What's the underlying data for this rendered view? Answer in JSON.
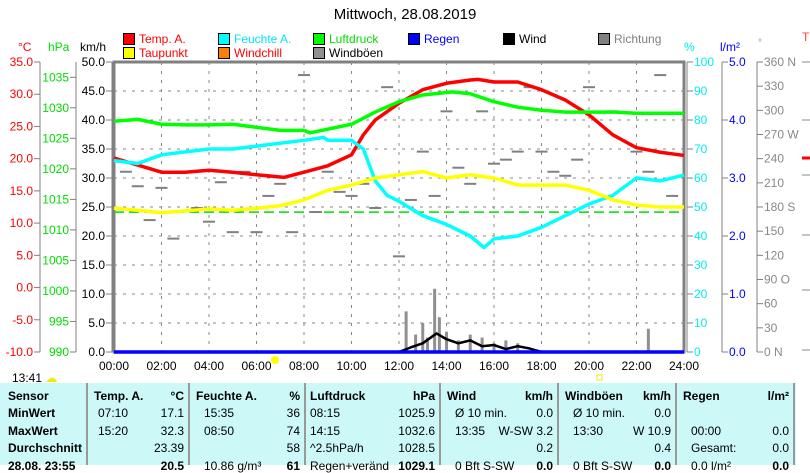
{
  "title": "Mittwoch, 28.08.2019",
  "legend": [
    {
      "label": "Temp. A.",
      "color": "#ff0000",
      "text_color": "#ff0000"
    },
    {
      "label": "Feuchte A.",
      "color": "#00ffff",
      "text_color": "#00e5ff"
    },
    {
      "label": "Luftdruck",
      "color": "#00ff00",
      "text_color": "#00dd00"
    },
    {
      "label": "Regen",
      "color": "#0000ff",
      "text_color": "#0000ff"
    },
    {
      "label": "Wind",
      "color": "#000000",
      "text_color": "#000000"
    },
    {
      "label": "Richtung",
      "color": "#808080",
      "text_color": "#808080"
    },
    {
      "label": "Taupunkt",
      "color": "#ffff00",
      "text_color": "#ff0000"
    },
    {
      "label": "Windchill",
      "color": "#ff8000",
      "text_color": "#ff0000"
    },
    {
      "label": "Windböen",
      "color": "#909090",
      "text_color": "#000000"
    }
  ],
  "units": {
    "temp": "°C",
    "pressure": "hPa",
    "wind": "km/h",
    "humidity": "%",
    "rain": "l/m²",
    "direction": "°",
    "right_partial": "T"
  },
  "current_time": "13:41",
  "chart_data": {
    "type": "line",
    "title": "Mittwoch, 28.08.2019",
    "x_range": [
      0,
      24
    ],
    "x_ticks": [
      "00:00",
      "02:00",
      "04:00",
      "06:00",
      "08:00",
      "10:00",
      "12:00",
      "14:00",
      "16:00",
      "18:00",
      "20:00",
      "22:00",
      "24:00"
    ],
    "axes": {
      "temp": {
        "range": [
          -10,
          35
        ],
        "ticks": [
          "35.0",
          "30.0",
          "25.0",
          "20.0",
          "15.0",
          "10.0",
          "5.0",
          "0.0",
          "-5.0",
          "-10.0"
        ]
      },
      "pressure": {
        "range": [
          990,
          1037.5
        ],
        "ticks": [
          "1035",
          "1030",
          "1025",
          "1020",
          "1015",
          "1010",
          "1005",
          "1000",
          "995",
          "990"
        ]
      },
      "wind": {
        "range": [
          0,
          50
        ],
        "ticks": [
          "50.0",
          "45.0",
          "40.0",
          "35.0",
          "30.0",
          "25.0",
          "20.0",
          "15.0",
          "10.0",
          "5.0",
          "0.0"
        ]
      },
      "humidity": {
        "range": [
          0,
          100
        ],
        "ticks": [
          "100",
          "90",
          "80",
          "70",
          "60",
          "50",
          "40",
          "30",
          "20",
          "10",
          "0"
        ]
      },
      "rain": {
        "range": [
          0,
          5
        ],
        "ticks": [
          "5.0",
          "4.0",
          "3.0",
          "2.0",
          "1.0",
          "0.0"
        ]
      },
      "direction": {
        "range": [
          0,
          360
        ],
        "ticks": [
          "360 N",
          "330",
          "300",
          "270 W",
          "240",
          "210",
          "180 S",
          "150",
          "120",
          "90  O",
          "60",
          "30",
          "0    N"
        ]
      }
    },
    "series": [
      {
        "name": "Temp. A.",
        "axis": "temp",
        "color": "#ff0000",
        "points": [
          [
            0,
            20.1
          ],
          [
            1,
            19.0
          ],
          [
            2,
            17.9
          ],
          [
            3,
            17.9
          ],
          [
            4,
            18.2
          ],
          [
            5,
            17.9
          ],
          [
            6,
            17.5
          ],
          [
            7.17,
            17.1
          ],
          [
            8,
            17.9
          ],
          [
            9,
            18.9
          ],
          [
            10,
            20.6
          ],
          [
            10.5,
            23.7
          ],
          [
            11,
            26.0
          ],
          [
            12,
            28.6
          ],
          [
            13,
            30.7
          ],
          [
            14,
            31.7
          ],
          [
            15,
            32.2
          ],
          [
            15.33,
            32.3
          ],
          [
            16,
            31.9
          ],
          [
            17,
            31.9
          ],
          [
            18,
            30.7
          ],
          [
            19,
            29.1
          ],
          [
            20,
            26.8
          ],
          [
            21,
            23.7
          ],
          [
            22,
            21.7
          ],
          [
            23,
            21.0
          ],
          [
            24,
            20.5
          ]
        ]
      },
      {
        "name": "Feuchte A.",
        "axis": "humidity",
        "color": "#00ffff",
        "points": [
          [
            0,
            66
          ],
          [
            1,
            65
          ],
          [
            2,
            68
          ],
          [
            3,
            69
          ],
          [
            4,
            70
          ],
          [
            5,
            70
          ],
          [
            6,
            71
          ],
          [
            7,
            72
          ],
          [
            8,
            73
          ],
          [
            8.83,
            74
          ],
          [
            9,
            73
          ],
          [
            10,
            73
          ],
          [
            10.5,
            70
          ],
          [
            11,
            59
          ],
          [
            11.5,
            54
          ],
          [
            12,
            52
          ],
          [
            13,
            47
          ],
          [
            14,
            44
          ],
          [
            15,
            40
          ],
          [
            15.58,
            36
          ],
          [
            16,
            39
          ],
          [
            17,
            40
          ],
          [
            18,
            43
          ],
          [
            19,
            47
          ],
          [
            20,
            51
          ],
          [
            21,
            54
          ],
          [
            22,
            60
          ],
          [
            23,
            59
          ],
          [
            24,
            61
          ]
        ]
      },
      {
        "name": "Luftdruck",
        "axis": "pressure",
        "color": "#00ff00",
        "points": [
          [
            0,
            1027.8
          ],
          [
            1,
            1028.1
          ],
          [
            2,
            1027.3
          ],
          [
            3,
            1027.2
          ],
          [
            4,
            1027.2
          ],
          [
            5,
            1027.3
          ],
          [
            6,
            1026.8
          ],
          [
            7,
            1026.3
          ],
          [
            8,
            1026.3
          ],
          [
            8.25,
            1025.9
          ],
          [
            9,
            1026.5
          ],
          [
            10,
            1027.3
          ],
          [
            11,
            1029.3
          ],
          [
            12,
            1031.0
          ],
          [
            13,
            1032.1
          ],
          [
            14.25,
            1032.6
          ],
          [
            15,
            1032.3
          ],
          [
            16,
            1031.0
          ],
          [
            17,
            1030.1
          ],
          [
            18,
            1029.6
          ],
          [
            19,
            1029.3
          ],
          [
            20,
            1029.3
          ],
          [
            21,
            1029.3
          ],
          [
            22,
            1029.1
          ],
          [
            24,
            1029.1
          ]
        ]
      },
      {
        "name": "Taupunkt",
        "axis": "temp",
        "color": "#ffff00",
        "points": [
          [
            0,
            12.3
          ],
          [
            1,
            12.0
          ],
          [
            2,
            11.6
          ],
          [
            3,
            11.9
          ],
          [
            4,
            12.2
          ],
          [
            5,
            12.0
          ],
          [
            6,
            12.3
          ],
          [
            7,
            12.7
          ],
          [
            8,
            13.6
          ],
          [
            9,
            15.1
          ],
          [
            10,
            15.9
          ],
          [
            11,
            17.0
          ],
          [
            12,
            17.5
          ],
          [
            13,
            18.0
          ],
          [
            14,
            17.0
          ],
          [
            15,
            17.5
          ],
          [
            16,
            17.0
          ],
          [
            17,
            15.9
          ],
          [
            18,
            15.9
          ],
          [
            19,
            15.9
          ],
          [
            20,
            15.1
          ],
          [
            21,
            13.6
          ],
          [
            22,
            12.8
          ],
          [
            23,
            12.5
          ],
          [
            24,
            12.5
          ]
        ]
      },
      {
        "name": "Wind",
        "axis": "wind",
        "color": "#000000",
        "points": [
          [
            12,
            0
          ],
          [
            12.5,
            0.8
          ],
          [
            13,
            1.5
          ],
          [
            13.58,
            3.2
          ],
          [
            14,
            2.2
          ],
          [
            14.5,
            1.5
          ],
          [
            15,
            2.0
          ],
          [
            15.5,
            1.0
          ],
          [
            16,
            1.2
          ],
          [
            16.5,
            0.5
          ],
          [
            17,
            1.0
          ],
          [
            17.5,
            0.6
          ],
          [
            18,
            0
          ],
          [
            24,
            0
          ]
        ]
      },
      {
        "name": "Regen",
        "axis": "rain",
        "color": "#0000ff",
        "points": [
          [
            0,
            0
          ],
          [
            24,
            0
          ]
        ]
      }
    ],
    "gusts": {
      "name": "Windböen",
      "axis": "wind",
      "color": "#909090",
      "bars": [
        [
          12.3,
          7.0
        ],
        [
          12.7,
          3.0
        ],
        [
          13.0,
          5.0
        ],
        [
          13.2,
          2.5
        ],
        [
          13.5,
          10.9
        ],
        [
          13.7,
          6.0
        ],
        [
          14.0,
          3.5
        ],
        [
          14.5,
          2.0
        ],
        [
          15.0,
          3.0
        ],
        [
          15.5,
          2.5
        ],
        [
          16.0,
          1.5
        ],
        [
          16.5,
          2.0
        ],
        [
          17.0,
          1.5
        ],
        [
          22.5,
          4.0
        ]
      ]
    },
    "direction": {
      "name": "Richtung",
      "axis": "direction",
      "color": "#808080",
      "points": [
        [
          0.5,
          225
        ],
        [
          1,
          207
        ],
        [
          1.5,
          165
        ],
        [
          2,
          205
        ],
        [
          2.5,
          142
        ],
        [
          3,
          250
        ],
        [
          3.5,
          180
        ],
        [
          4,
          163
        ],
        [
          4.5,
          212
        ],
        [
          5,
          150
        ],
        [
          5.5,
          225
        ],
        [
          6,
          150
        ],
        [
          6.5,
          195
        ],
        [
          7,
          210
        ],
        [
          7.5,
          150
        ],
        [
          8,
          345
        ],
        [
          8.5,
          175
        ],
        [
          9,
          225
        ],
        [
          9.5,
          200
        ],
        [
          10,
          195
        ],
        [
          10.5,
          210
        ],
        [
          11,
          180
        ],
        [
          11.5,
          330
        ],
        [
          12,
          120
        ],
        [
          12.5,
          190
        ],
        [
          13,
          250
        ],
        [
          13.5,
          195
        ],
        [
          14,
          300
        ],
        [
          14.5,
          230
        ],
        [
          15,
          210
        ],
        [
          15.5,
          300
        ],
        [
          16,
          235
        ],
        [
          16.5,
          240
        ],
        [
          17,
          250
        ],
        [
          17.5,
          330
        ],
        [
          18,
          250
        ],
        [
          18.5,
          225
        ],
        [
          19,
          220
        ],
        [
          19.5,
          240
        ],
        [
          20,
          330
        ],
        [
          21,
          300
        ],
        [
          22,
          250
        ],
        [
          22.5,
          225
        ],
        [
          23,
          345
        ],
        [
          23.5,
          195
        ]
      ]
    },
    "reference_line": {
      "axis": "temp",
      "value": 11.7,
      "color": "#00dd00"
    }
  },
  "table": {
    "headers": [
      [
        "Sensor",
        ""
      ],
      [
        "Temp. A.",
        "°C"
      ],
      [
        "Feuchte A.",
        "%"
      ],
      [
        "Luftdruck",
        "hPa"
      ],
      [
        "Wind",
        "km/h"
      ],
      [
        "Windböen",
        "km/h"
      ],
      [
        "Regen",
        "l/m²"
      ]
    ],
    "rows": [
      {
        "label": "MinWert",
        "cells": [
          [
            "07:10",
            "17.1"
          ],
          [
            "15:35",
            "36"
          ],
          [
            "08:15",
            "1025.9"
          ],
          [
            "Ø 10 min.",
            "0.0"
          ],
          [
            "Ø 10 min.",
            "0.0"
          ],
          [
            "",
            ""
          ]
        ]
      },
      {
        "label": "MaxWert",
        "cells": [
          [
            "15:20",
            "32.3"
          ],
          [
            "08:50",
            "74"
          ],
          [
            "14:15",
            "1032.6"
          ],
          [
            "13:35",
            "W-SW 3.2"
          ],
          [
            "13:30",
            "W 10.9"
          ],
          [
            "00:00",
            "0.0"
          ]
        ]
      },
      {
        "label": "Durchschnitt",
        "cells": [
          [
            "",
            "23.39"
          ],
          [
            "",
            "58"
          ],
          [
            "^2.5hPa/h",
            "1028.5"
          ],
          [
            "",
            "0.2"
          ],
          [
            "",
            "0.4"
          ],
          [
            "Gesamt:",
            "0.0"
          ]
        ]
      },
      {
        "label": "28.08. 23:55",
        "cells": [
          [
            "",
            "20.5"
          ],
          [
            "10.86 g/m³",
            "61"
          ],
          [
            "Regen+veränd",
            "1029.1"
          ],
          [
            "0 Bft S-SW",
            "0.0"
          ],
          [
            "0 Bft S-SW",
            "0.0"
          ],
          [
            "0.0 l/m²",
            "0.0"
          ]
        ]
      }
    ]
  }
}
